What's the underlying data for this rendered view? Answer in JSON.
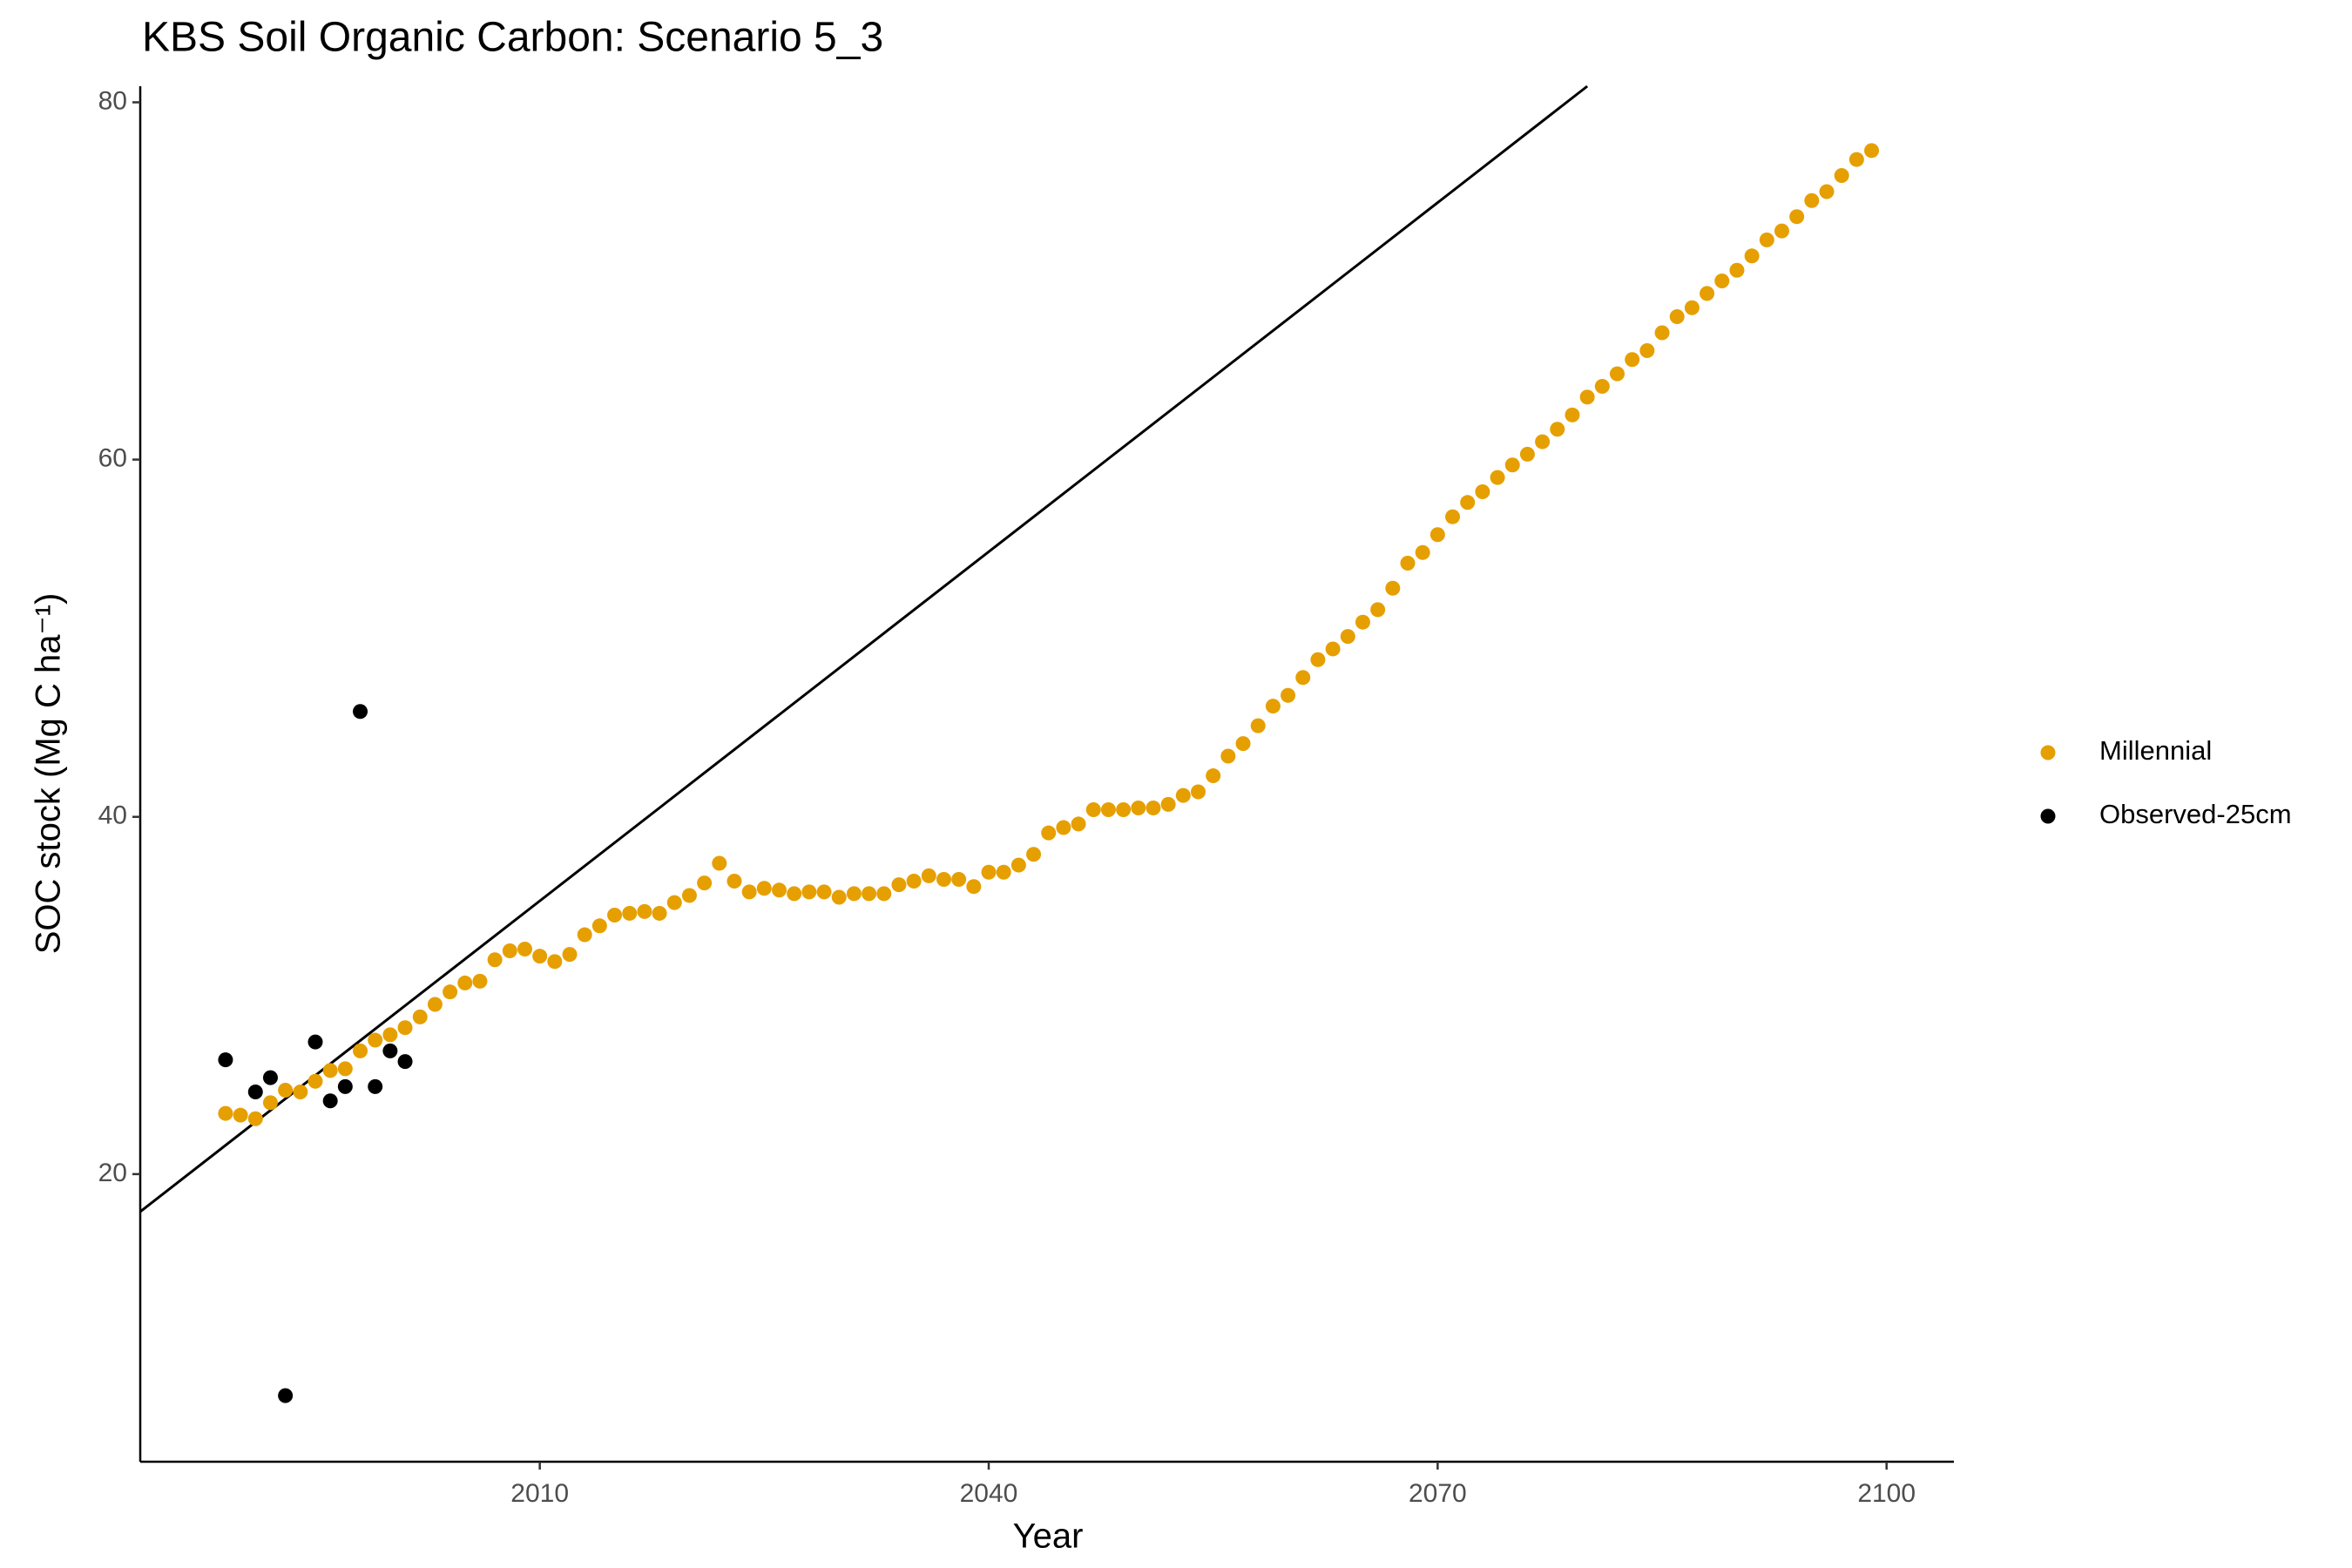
{
  "chart_data": {
    "type": "scatter",
    "title": "KBS Soil Organic Carbon: Scenario  5_3",
    "x_label": "Year",
    "y_label": "SOC stock (Mg C ha⁻¹)",
    "xlim": [
      1983.3,
      2104.5
    ],
    "ylim": [
      3.9,
      80.9
    ],
    "xticks": [
      2010,
      2040,
      2070,
      2100
    ],
    "yticks": [
      20,
      40,
      60,
      80
    ],
    "grid": false,
    "legend": "right",
    "series": [
      {
        "name": "Millennial",
        "color": "#E69F00",
        "x": [
          1989,
          1990,
          1991,
          1992,
          1993,
          1994,
          1995,
          1996,
          1997,
          1998,
          1999,
          2000,
          2001,
          2002,
          2003,
          2004,
          2005,
          2006,
          2007,
          2008,
          2009,
          2010,
          2011,
          2012,
          2013,
          2014,
          2015,
          2016,
          2017,
          2018,
          2019,
          2020,
          2021,
          2022,
          2023,
          2024,
          2025,
          2026,
          2027,
          2028,
          2029,
          2030,
          2031,
          2032,
          2033,
          2034,
          2035,
          2036,
          2037,
          2038,
          2039,
          2040,
          2041,
          2042,
          2043,
          2044,
          2045,
          2046,
          2047,
          2048,
          2049,
          2050,
          2051,
          2052,
          2053,
          2054,
          2055,
          2056,
          2057,
          2058,
          2059,
          2060,
          2061,
          2062,
          2063,
          2064,
          2065,
          2066,
          2067,
          2068,
          2069,
          2070,
          2071,
          2072,
          2073,
          2074,
          2075,
          2076,
          2077,
          2078,
          2079,
          2080,
          2081,
          2082,
          2083,
          2084,
          2085,
          2086,
          2087,
          2088,
          2089,
          2090,
          2091,
          2092,
          2093,
          2094,
          2095,
          2096,
          2097,
          2098,
          2099
        ],
        "values": [
          23.4,
          23.3,
          23.1,
          24.0,
          24.7,
          24.6,
          25.2,
          25.8,
          25.9,
          26.9,
          27.5,
          27.8,
          28.2,
          28.8,
          29.5,
          30.2,
          30.7,
          30.8,
          32.0,
          32.5,
          32.6,
          32.2,
          31.9,
          32.3,
          33.4,
          33.9,
          34.5,
          34.6,
          34.7,
          34.6,
          35.2,
          35.6,
          36.3,
          37.4,
          36.4,
          35.8,
          36.0,
          35.9,
          35.7,
          35.8,
          35.8,
          35.5,
          35.7,
          35.7,
          35.7,
          36.2,
          36.4,
          36.7,
          36.5,
          36.5,
          36.1,
          36.9,
          36.9,
          37.3,
          37.9,
          39.1,
          39.4,
          39.6,
          40.4,
          40.4,
          40.4,
          40.5,
          40.5,
          40.7,
          41.2,
          41.4,
          42.3,
          43.4,
          44.1,
          45.1,
          46.2,
          46.8,
          47.8,
          48.8,
          49.4,
          50.1,
          50.9,
          51.6,
          52.8,
          54.2,
          54.8,
          55.8,
          56.8,
          57.6,
          58.2,
          59.0,
          59.7,
          60.3,
          61.0,
          61.7,
          62.5,
          63.5,
          64.1,
          64.8,
          65.6,
          66.1,
          67.1,
          68.0,
          68.5,
          69.3,
          70.0,
          70.6,
          71.4,
          72.3,
          72.8,
          73.6,
          74.5,
          75.0,
          75.9,
          76.8,
          77.3
        ]
      },
      {
        "name": "Observed-25cm",
        "color": "#000000",
        "x": [
          1989,
          1991,
          1992,
          1993,
          1995,
          1996,
          1997,
          1998,
          1999,
          2000,
          2001
        ],
        "values": [
          26.4,
          24.6,
          25.4,
          7.6,
          27.4,
          24.1,
          24.9,
          45.9,
          24.9,
          26.9,
          26.3
        ]
      }
    ],
    "reference_line": {
      "color": "#000000",
      "x": [
        1983.3,
        2080.0
      ],
      "y": [
        17.9,
        80.9
      ]
    }
  }
}
